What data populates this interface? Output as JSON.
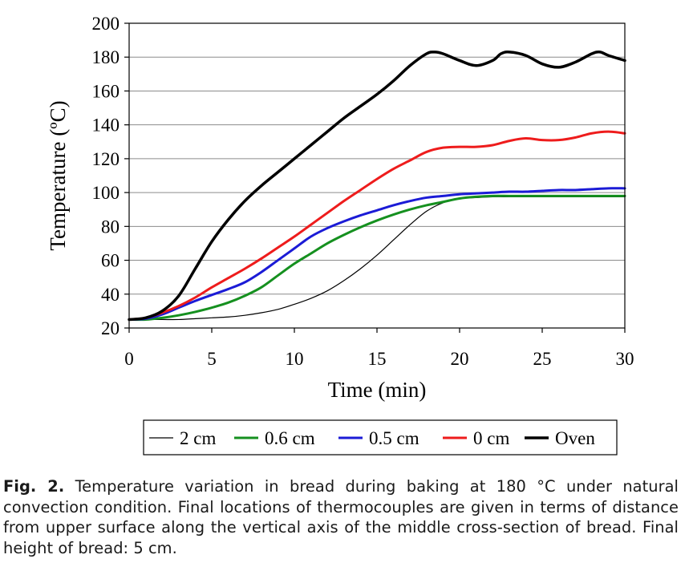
{
  "chart_data": {
    "type": "line",
    "title": "",
    "xlabel": "Time (min)",
    "ylabel": "Temperature (ºC)",
    "xlim": [
      0,
      30
    ],
    "ylim": [
      20,
      200
    ],
    "xticks": [
      0,
      5,
      10,
      15,
      20,
      25,
      30
    ],
    "xtick_labels": [
      "0",
      "5",
      "10",
      "15",
      "20",
      "25",
      "30"
    ],
    "yticks": [
      20,
      40,
      60,
      80,
      100,
      120,
      140,
      160,
      180,
      200
    ],
    "ytick_labels": [
      "20",
      "40",
      "60",
      "80",
      "100",
      "120",
      "140",
      "160",
      "180",
      "200"
    ],
    "grid": "horizontal",
    "legend_position": "bottom",
    "series": [
      {
        "name": "2 cm",
        "color": "#000000",
        "width": 1.2,
        "x": [
          0,
          1,
          2,
          3,
          4,
          5,
          6,
          7,
          8,
          9,
          10,
          11,
          12,
          13,
          14,
          15,
          16,
          17,
          18,
          19,
          20,
          21,
          22,
          23,
          24,
          25,
          26,
          27,
          28,
          29,
          30
        ],
        "values": [
          25,
          25,
          25,
          25,
          25.5,
          26,
          26.5,
          27.5,
          29,
          31,
          34,
          37.5,
          42,
          48,
          55,
          63,
          72,
          81,
          89,
          94,
          96.5,
          97,
          97.5,
          97.5,
          97.5,
          97.5,
          97.5,
          97.5,
          97.5,
          97.5,
          97.5
        ]
      },
      {
        "name": "0.6 cm",
        "color": "#15901f",
        "width": 3,
        "x": [
          0,
          1,
          2,
          3,
          4,
          5,
          6,
          7,
          8,
          9,
          10,
          11,
          12,
          13,
          14,
          15,
          16,
          17,
          18,
          19,
          20,
          21,
          22,
          23,
          24,
          25,
          26,
          27,
          28,
          29,
          30
        ],
        "values": [
          25,
          25,
          26,
          27.5,
          29.5,
          32,
          35,
          39,
          44,
          51,
          58,
          64,
          70,
          75,
          79.5,
          83.5,
          87,
          90,
          92.5,
          94.5,
          96.5,
          97.5,
          98,
          98,
          98,
          98,
          98,
          98,
          98,
          98,
          98
        ]
      },
      {
        "name": "0.5 cm",
        "color": "#1b1bd6",
        "width": 3,
        "x": [
          0,
          1,
          2,
          3,
          4,
          5,
          6,
          7,
          8,
          9,
          10,
          11,
          12,
          13,
          14,
          15,
          16,
          17,
          18,
          19,
          20,
          21,
          22,
          23,
          24,
          25,
          26,
          27,
          28,
          29,
          30
        ],
        "values": [
          25,
          25.5,
          28,
          32,
          36,
          39.5,
          43,
          47,
          53,
          60,
          67,
          74,
          79,
          83,
          86.5,
          89.5,
          92.5,
          95,
          97,
          98,
          99,
          99.5,
          100,
          100.5,
          100.5,
          101,
          101.5,
          101.5,
          102,
          102.5,
          102.5
        ]
      },
      {
        "name": "0 cm",
        "color": "#ee1c1c",
        "width": 3,
        "x": [
          0,
          1,
          2,
          3,
          4,
          5,
          6,
          7,
          8,
          9,
          10,
          11,
          12,
          13,
          14,
          15,
          16,
          17,
          18,
          19,
          20,
          21,
          22,
          23,
          24,
          25,
          26,
          27,
          28,
          29,
          30
        ],
        "values": [
          25,
          26,
          29,
          33,
          38,
          44,
          49.5,
          55,
          61,
          67.5,
          74,
          81,
          88,
          95,
          101.5,
          108,
          114,
          119,
          124,
          126.5,
          127,
          127,
          128,
          130.5,
          132,
          131,
          131,
          132.5,
          135,
          136,
          135
        ]
      },
      {
        "name": "Oven",
        "color": "#000000",
        "width": 3.5,
        "x": [
          0,
          1,
          2,
          3,
          4,
          5,
          6,
          7,
          8,
          9,
          10,
          11,
          12,
          13,
          14,
          15,
          16,
          17,
          18,
          18.5,
          19,
          20,
          21,
          22,
          22.5,
          23,
          24,
          25,
          26,
          27,
          28,
          28.5,
          29,
          30
        ],
        "values": [
          25,
          26,
          30,
          39,
          55,
          71,
          84,
          95,
          104,
          112,
          120,
          128,
          136,
          144,
          151,
          158,
          166,
          175,
          182,
          183,
          182,
          178,
          175,
          178,
          182,
          183,
          181,
          176,
          174,
          177,
          182,
          183,
          181,
          178
        ]
      }
    ]
  },
  "caption": {
    "label": "Fig. 2.",
    "text": " Temperature variation in bread during baking at 180 °C under natural convection condition. Final locations of thermocouples are given in terms of distance from upper surface along the vertical axis of the middle cross-section of bread. Final height of bread: 5 cm."
  }
}
